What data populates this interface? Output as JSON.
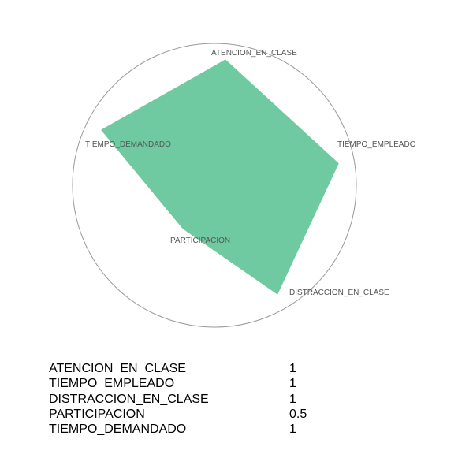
{
  "chart_data": {
    "type": "radar",
    "axes": [
      "ATENCION_EN_CLASE",
      "TIEMPO_EMPLEADO",
      "DISTRACCION_EN_CLASE",
      "PARTICIPACION",
      "TIEMPO_DEMANDADO"
    ],
    "values": [
      1,
      1,
      1,
      0.5,
      1
    ],
    "range": [
      0,
      1
    ],
    "fill_color": "#6fcaa2",
    "circle_color": "#999999"
  },
  "table": {
    "rows": [
      {
        "label": "ATENCION_EN_CLASE",
        "value": "1"
      },
      {
        "label": "TIEMPO_EMPLEADO",
        "value": "1"
      },
      {
        "label": "DISTRACCION_EN_CLASE",
        "value": "1"
      },
      {
        "label": "PARTICIPACION",
        "value": "0.5"
      },
      {
        "label": "TIEMPO_DEMANDADO",
        "value": "1"
      }
    ]
  }
}
